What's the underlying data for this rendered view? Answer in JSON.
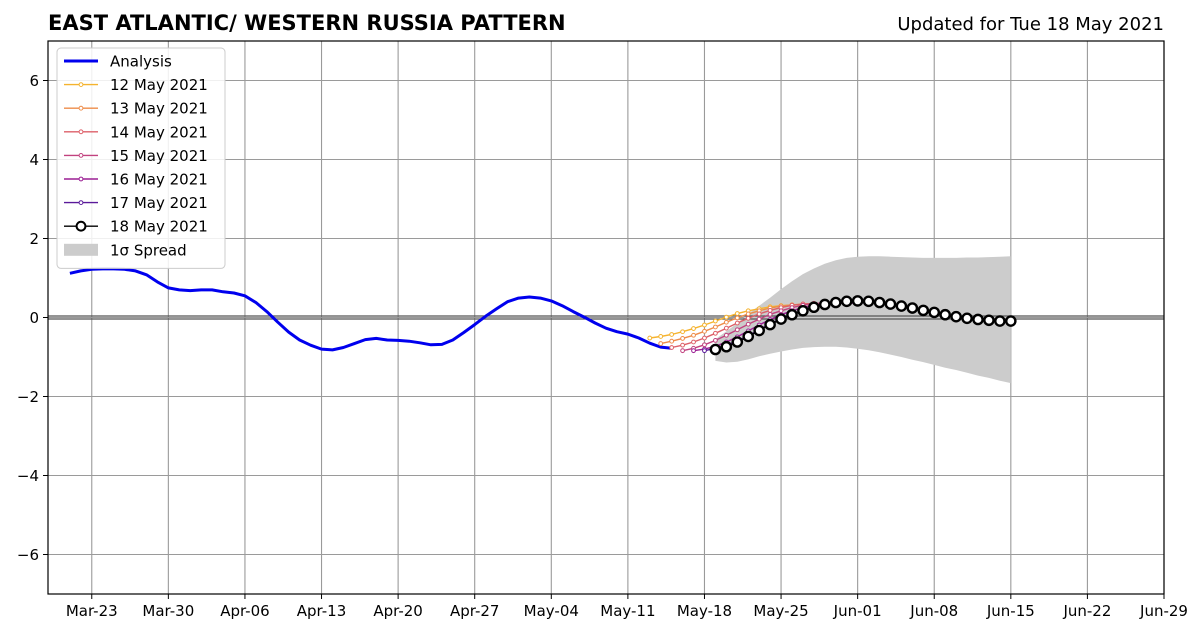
{
  "chart_data": {
    "type": "line",
    "title": "EAST ATLANTIC/ WESTERN RUSSIA PATTERN",
    "subtitle": "Updated for Tue 18 May 2021",
    "xlabel": "",
    "ylabel": "",
    "year": 2021,
    "xlim": [
      "2021-03-19",
      "2021-06-29"
    ],
    "ylim": [
      -7,
      7
    ],
    "grid": true,
    "legend_position": "top-left",
    "xticks": [
      "Mar-23",
      "Mar-30",
      "Apr-06",
      "Apr-13",
      "Apr-20",
      "Apr-27",
      "May-04",
      "May-11",
      "May-18",
      "May-25",
      "Jun-01",
      "Jun-08",
      "Jun-15",
      "Jun-22",
      "Jun-29"
    ],
    "yticks": [
      "−6",
      "−4",
      "−2",
      "0",
      "2",
      "4",
      "6"
    ],
    "analysis": {
      "name": "Analysis",
      "color": "#0000ee",
      "x": [
        "2021-03-21",
        "2021-03-22",
        "2021-03-23",
        "2021-03-24",
        "2021-03-25",
        "2021-03-26",
        "2021-03-27",
        "2021-03-28",
        "2021-03-29",
        "2021-03-30",
        "2021-03-31",
        "2021-04-01",
        "2021-04-02",
        "2021-04-03",
        "2021-04-04",
        "2021-04-05",
        "2021-04-06",
        "2021-04-07",
        "2021-04-08",
        "2021-04-09",
        "2021-04-10",
        "2021-04-11",
        "2021-04-12",
        "2021-04-13",
        "2021-04-14",
        "2021-04-15",
        "2021-04-16",
        "2021-04-17",
        "2021-04-18",
        "2021-04-19",
        "2021-04-20",
        "2021-04-21",
        "2021-04-22",
        "2021-04-23",
        "2021-04-24",
        "2021-04-25",
        "2021-04-26",
        "2021-04-27",
        "2021-04-28",
        "2021-04-29",
        "2021-04-30",
        "2021-05-01",
        "2021-05-02",
        "2021-05-03",
        "2021-05-04",
        "2021-05-05",
        "2021-05-06",
        "2021-05-07",
        "2021-05-08",
        "2021-05-09",
        "2021-05-10",
        "2021-05-11",
        "2021-05-12",
        "2021-05-13",
        "2021-05-14",
        "2021-05-15"
      ],
      "y": [
        1.12,
        1.18,
        1.22,
        1.23,
        1.23,
        1.22,
        1.18,
        1.08,
        0.9,
        0.75,
        0.7,
        0.68,
        0.7,
        0.7,
        0.65,
        0.62,
        0.55,
        0.38,
        0.15,
        -0.12,
        -0.37,
        -0.57,
        -0.7,
        -0.8,
        -0.82,
        -0.76,
        -0.66,
        -0.56,
        -0.53,
        -0.57,
        -0.58,
        -0.6,
        -0.64,
        -0.69,
        -0.68,
        -0.57,
        -0.38,
        -0.18,
        0.03,
        0.22,
        0.4,
        0.49,
        0.52,
        0.49,
        0.42,
        0.3,
        0.15,
        0.01,
        -0.14,
        -0.27,
        -0.36,
        -0.42,
        -0.52,
        -0.65,
        -0.75,
        -0.78
      ]
    },
    "forecasts": [
      {
        "name": "12 May 2021",
        "color": "#f5b32e",
        "start": "2021-05-13",
        "y": [
          -0.52,
          -0.48,
          -0.43,
          -0.36,
          -0.28,
          -0.19,
          -0.09,
          0.01,
          0.1,
          0.17,
          0.22,
          0.27,
          0.3,
          0.32,
          0.33,
          0.33
        ]
      },
      {
        "name": "13 May 2021",
        "color": "#ee8c49",
        "start": "2021-05-14",
        "y": [
          -0.66,
          -0.6,
          -0.53,
          -0.45,
          -0.35,
          -0.24,
          -0.12,
          -0.01,
          0.09,
          0.17,
          0.24,
          0.29,
          0.32,
          0.34,
          0.35,
          0.35
        ]
      },
      {
        "name": "14 May 2021",
        "color": "#dd5f68",
        "start": "2021-05-15",
        "y": [
          -0.76,
          -0.7,
          -0.62,
          -0.52,
          -0.4,
          -0.27,
          -0.14,
          -0.02,
          0.09,
          0.18,
          0.25,
          0.31,
          0.34,
          0.36,
          0.36,
          0.35
        ]
      },
      {
        "name": "15 May 2021",
        "color": "#c1427f",
        "start": "2021-05-16",
        "y": [
          -0.84,
          -0.78,
          -0.69,
          -0.58,
          -0.45,
          -0.31,
          -0.17,
          -0.04,
          0.08,
          0.17,
          0.25,
          0.31,
          0.35,
          0.37,
          0.37,
          0.36
        ]
      },
      {
        "name": "16 May 2021",
        "color": "#9b1f94",
        "start": "2021-05-17",
        "y": [
          -0.84,
          -0.8,
          -0.73,
          -0.62,
          -0.49,
          -0.34,
          -0.19,
          -0.05,
          0.07,
          0.17,
          0.25,
          0.31,
          0.35,
          0.37,
          0.37,
          0.36
        ]
      },
      {
        "name": "17 May 2021",
        "color": "#5a1a9a",
        "start": "2021-05-18",
        "y": [
          -0.84,
          -0.78,
          -0.7,
          -0.59,
          -0.46,
          -0.31,
          -0.16,
          -0.03,
          0.08,
          0.18,
          0.26,
          0.32,
          0.36,
          0.38,
          0.38,
          0.37
        ]
      }
    ],
    "latest": {
      "name": "18 May 2021",
      "color": "#000000",
      "start": "2021-05-19",
      "y": [
        -0.81,
        -0.74,
        -0.62,
        -0.48,
        -0.33,
        -0.18,
        -0.04,
        0.07,
        0.17,
        0.26,
        0.33,
        0.38,
        0.41,
        0.42,
        0.41,
        0.38,
        0.34,
        0.29,
        0.24,
        0.18,
        0.13,
        0.07,
        0.02,
        -0.02,
        -0.05,
        -0.07,
        -0.09,
        -0.09
      ]
    },
    "spread": {
      "name": "1σ Spread",
      "color": "#cccccc",
      "start": "2021-05-19",
      "upper": [
        -0.55,
        -0.35,
        -0.15,
        0.1,
        0.3,
        0.5,
        0.72,
        0.92,
        1.1,
        1.24,
        1.36,
        1.45,
        1.51,
        1.54,
        1.55,
        1.55,
        1.54,
        1.53,
        1.52,
        1.51,
        1.51,
        1.51,
        1.51,
        1.52,
        1.52,
        1.53,
        1.54,
        1.55
      ],
      "lower": [
        -1.1,
        -1.14,
        -1.12,
        -1.06,
        -0.98,
        -0.92,
        -0.86,
        -0.81,
        -0.77,
        -0.75,
        -0.74,
        -0.74,
        -0.76,
        -0.79,
        -0.83,
        -0.88,
        -0.94,
        -1.0,
        -1.07,
        -1.13,
        -1.2,
        -1.27,
        -1.33,
        -1.4,
        -1.47,
        -1.53,
        -1.6,
        -1.66
      ]
    }
  }
}
